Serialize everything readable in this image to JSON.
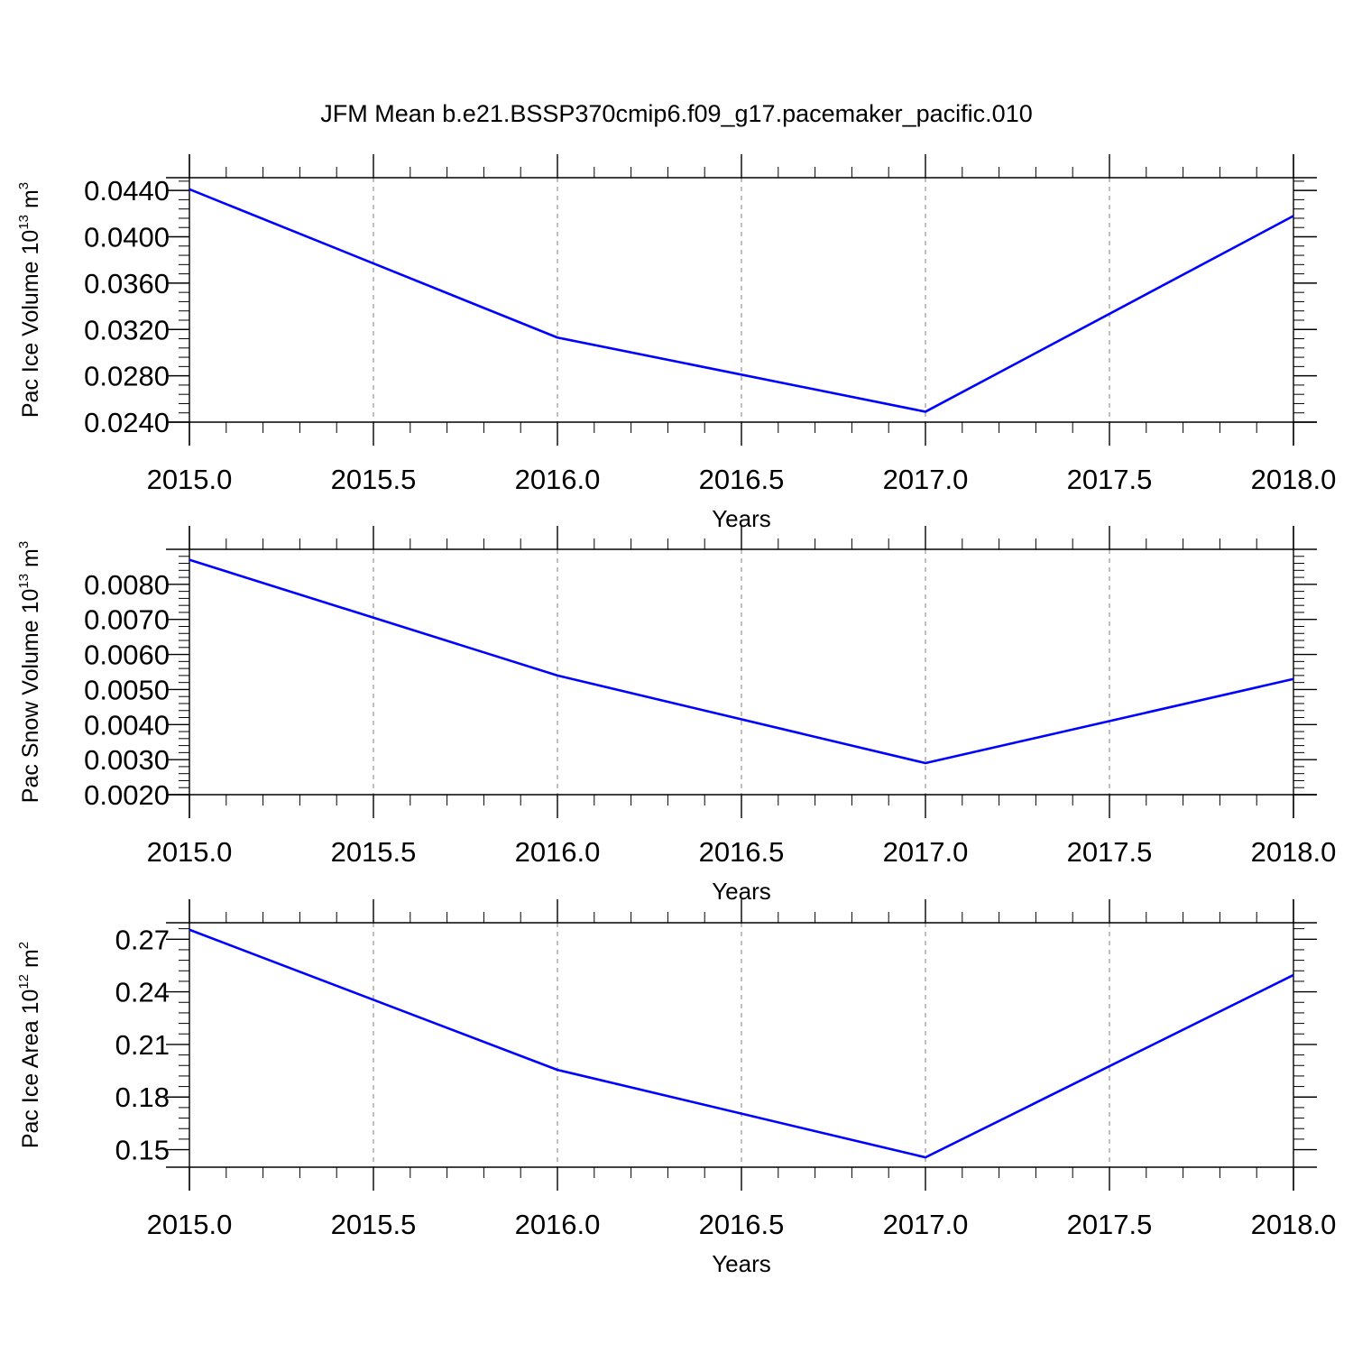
{
  "title": "JFM Mean b.e21.BSSP370cmip6.f09_g17.pacemaker_pacific.010",
  "colors": {
    "line": "#0000ff",
    "axis": "#000000",
    "grid": "#808080",
    "background": "#ffffff"
  },
  "chart_data": [
    {
      "type": "line",
      "ylabel_main": "Pac Ice Volume 10",
      "ylabel_exp": "13",
      "ylabel_unit": " m",
      "ylabel_unit_exp": "3",
      "xlabel": "Years",
      "xlim": [
        2015.0,
        2018.0
      ],
      "ylim": [
        0.024,
        0.0451
      ],
      "xticks": [
        2015.0,
        2015.5,
        2016.0,
        2016.5,
        2017.0,
        2017.5,
        2018.0
      ],
      "xtick_labels": [
        "2015.0",
        "2015.5",
        "2016.0",
        "2016.5",
        "2017.0",
        "2017.5",
        "2018.0"
      ],
      "yticks": [
        0.024,
        0.028,
        0.032,
        0.036,
        0.04,
        0.044
      ],
      "ytick_labels": [
        "0.0240",
        "0.0280",
        "0.0320",
        "0.0360",
        "0.0400",
        "0.0440"
      ],
      "grid": "vertical dashed",
      "x": [
        2015,
        2016,
        2017,
        2018
      ],
      "y": [
        0.0441,
        0.0313,
        0.0249,
        0.0418
      ]
    },
    {
      "type": "line",
      "ylabel_main": "Pac Snow Volume 10",
      "ylabel_exp": "13",
      "ylabel_unit": " m",
      "ylabel_unit_exp": "3",
      "xlabel": "Years",
      "xlim": [
        2015.0,
        2018.0
      ],
      "ylim": [
        0.002,
        0.009
      ],
      "xticks": [
        2015.0,
        2015.5,
        2016.0,
        2016.5,
        2017.0,
        2017.5,
        2018.0
      ],
      "xtick_labels": [
        "2015.0",
        "2015.5",
        "2016.0",
        "2016.5",
        "2017.0",
        "2017.5",
        "2018.0"
      ],
      "yticks": [
        0.002,
        0.003,
        0.004,
        0.005,
        0.006,
        0.007,
        0.008
      ],
      "ytick_labels": [
        "0.0020",
        "0.0030",
        "0.0040",
        "0.0050",
        "0.0060",
        "0.0070",
        "0.0080"
      ],
      "grid": "vertical dashed",
      "x": [
        2015,
        2016,
        2017,
        2018
      ],
      "y": [
        0.0087,
        0.0054,
        0.0029,
        0.0053
      ]
    },
    {
      "type": "line",
      "ylabel_main": "Pac Ice Area 10",
      "ylabel_exp": "12",
      "ylabel_unit": " m",
      "ylabel_unit_exp": "2",
      "xlabel": "Years",
      "xlim": [
        2015.0,
        2018.0
      ],
      "ylim": [
        0.14,
        0.2794
      ],
      "xticks": [
        2015.0,
        2015.5,
        2016.0,
        2016.5,
        2017.0,
        2017.5,
        2018.0
      ],
      "xtick_labels": [
        "2015.0",
        "2015.5",
        "2016.0",
        "2016.5",
        "2017.0",
        "2017.5",
        "2018.0"
      ],
      "yticks": [
        0.15,
        0.18,
        0.21,
        0.24,
        0.27
      ],
      "ytick_labels": [
        "0.15",
        "0.18",
        "0.21",
        "0.24",
        "0.27"
      ],
      "grid": "vertical dashed",
      "x": [
        2015,
        2016,
        2017,
        2018
      ],
      "y": [
        0.2754,
        0.1955,
        0.1456,
        0.2496
      ]
    }
  ]
}
